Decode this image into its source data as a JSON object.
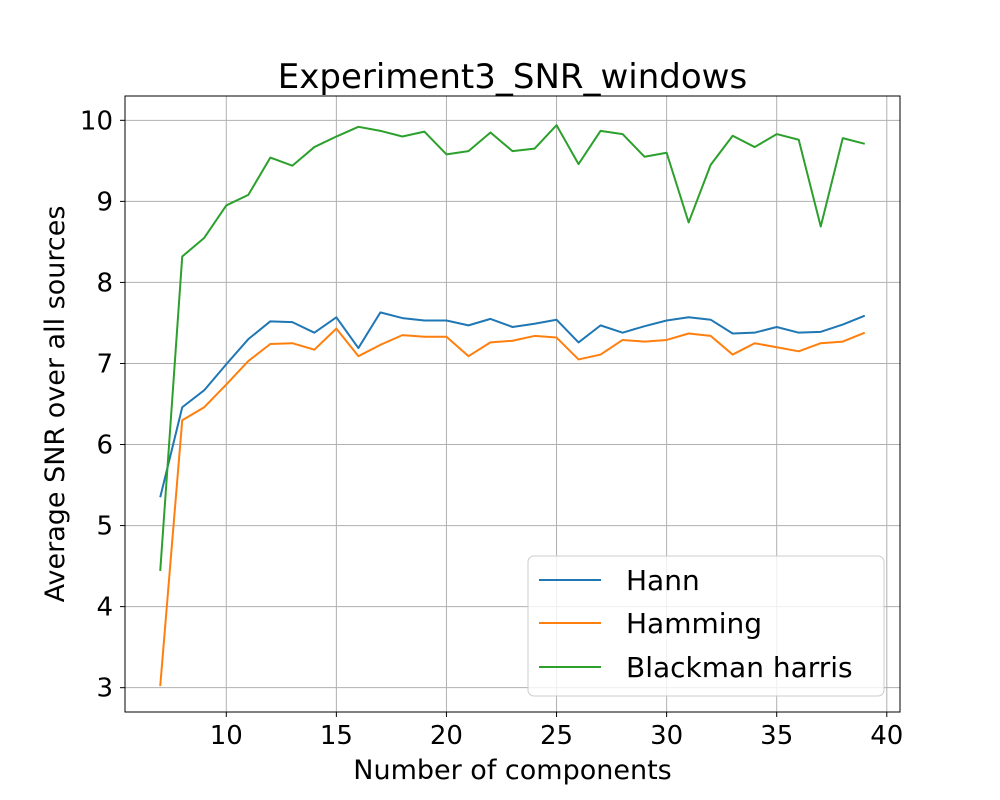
{
  "chart_data": {
    "type": "line",
    "title": "Experiment3_SNR_windows",
    "xlabel": "Number of components",
    "ylabel": "Average SNR over all sources",
    "xlim": [
      5.4,
      40.6
    ],
    "ylim": [
      2.7,
      10.3
    ],
    "xticks": [
      10,
      15,
      20,
      25,
      30,
      35,
      40
    ],
    "yticks": [
      3,
      4,
      5,
      6,
      7,
      8,
      9,
      10
    ],
    "grid": true,
    "legend_position": "lower-right",
    "x": [
      7,
      8,
      9,
      10,
      11,
      12,
      13,
      14,
      15,
      16,
      17,
      18,
      19,
      20,
      21,
      22,
      23,
      24,
      25,
      26,
      27,
      28,
      29,
      30,
      31,
      32,
      33,
      34,
      35,
      36,
      37,
      38,
      39
    ],
    "series": [
      {
        "name": "Hann",
        "color": "#1f77b4",
        "values": [
          5.35,
          6.46,
          6.67,
          6.99,
          7.3,
          7.52,
          7.51,
          7.38,
          7.57,
          7.19,
          7.63,
          7.56,
          7.53,
          7.53,
          7.47,
          7.55,
          7.45,
          7.49,
          7.54,
          7.26,
          7.47,
          7.38,
          7.46,
          7.53,
          7.57,
          7.54,
          7.37,
          7.38,
          7.45,
          7.38,
          7.39,
          7.48,
          7.59
        ]
      },
      {
        "name": "Hamming",
        "color": "#ff7f0e",
        "values": [
          3.02,
          6.3,
          6.46,
          6.74,
          7.03,
          7.24,
          7.25,
          7.17,
          7.43,
          7.09,
          7.23,
          7.35,
          7.33,
          7.33,
          7.09,
          7.26,
          7.28,
          7.34,
          7.32,
          7.05,
          7.11,
          7.29,
          7.27,
          7.29,
          7.37,
          7.34,
          7.11,
          7.25,
          7.2,
          7.15,
          7.25,
          7.27,
          7.38
        ]
      },
      {
        "name": "Blackman harris",
        "color": "#2ca02c",
        "values": [
          4.44,
          8.32,
          8.55,
          8.95,
          9.08,
          9.54,
          9.44,
          9.67,
          9.8,
          9.92,
          9.87,
          9.8,
          9.86,
          9.58,
          9.62,
          9.85,
          9.62,
          9.65,
          9.94,
          9.46,
          9.87,
          9.83,
          9.55,
          9.6,
          8.74,
          9.45,
          9.81,
          9.67,
          9.83,
          9.76,
          8.69,
          9.78,
          9.71
        ]
      }
    ]
  }
}
